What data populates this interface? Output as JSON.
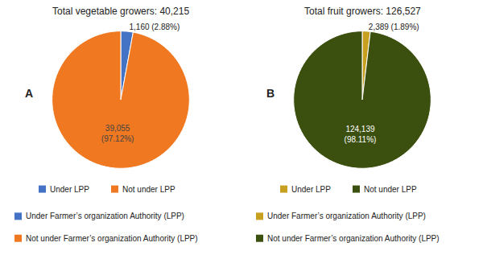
{
  "chart_data": [
    {
      "type": "pie",
      "title": "Total vegetable growers: 40,215",
      "annotations": [
        "A"
      ],
      "categories": [
        "Under LPP",
        "Not under LPP"
      ],
      "legend_labels": [
        "Under Farmer’s organization Authority (LPP)",
        "Not under Farmer’s organization Authority (LPP)"
      ],
      "values": [
        1160,
        39055
      ],
      "value_labels": [
        "1,160 (2.88%)",
        "39,055\n(97.12%)"
      ],
      "colors": [
        "#4472C4",
        "#F07820"
      ],
      "data_labels": true
    },
    {
      "type": "pie",
      "title": "Total fruit growers: 126,527",
      "annotations": [
        "B"
      ],
      "categories": [
        "Under LPP",
        "Not under LPP"
      ],
      "legend_labels": [
        "Under Farmer’s organization Authority (LPP)",
        "Not under Farmer’s organization Authority (LPP)"
      ],
      "values": [
        2389,
        124139
      ],
      "value_labels": [
        "2,389 (1.89%)",
        "124,139\n(98.11%)"
      ],
      "colors": [
        "#C8A020",
        "#3B4F0E"
      ],
      "data_labels": true
    }
  ]
}
